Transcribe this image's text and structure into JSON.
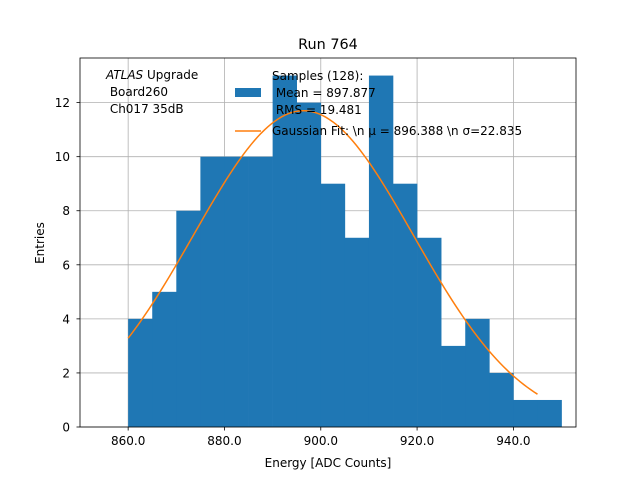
{
  "chart_data": {
    "type": "bar",
    "title": "Run 764",
    "xlabel": "Energy [ADC Counts]",
    "ylabel": "Entries",
    "xlim": [
      850,
      953
    ],
    "ylim": [
      0,
      13.65
    ],
    "grid": true,
    "xticks": [
      860,
      880,
      900,
      920,
      940
    ],
    "xtick_labels": [
      "860.0",
      "880.0",
      "900.0",
      "920.0",
      "940.0"
    ],
    "yticks": [
      0,
      2,
      4,
      6,
      8,
      10,
      12
    ],
    "bins": [
      {
        "x0": 860,
        "x1": 865,
        "count": 4
      },
      {
        "x0": 865,
        "x1": 870,
        "count": 5
      },
      {
        "x0": 870,
        "x1": 875,
        "count": 8
      },
      {
        "x0": 875,
        "x1": 880,
        "count": 10
      },
      {
        "x0": 880,
        "x1": 885,
        "count": 10
      },
      {
        "x0": 885,
        "x1": 890,
        "count": 10
      },
      {
        "x0": 890,
        "x1": 895,
        "count": 13
      },
      {
        "x0": 895,
        "x1": 900,
        "count": 12
      },
      {
        "x0": 900,
        "x1": 905,
        "count": 9
      },
      {
        "x0": 905,
        "x1": 910,
        "count": 7
      },
      {
        "x0": 910,
        "x1": 915,
        "count": 13
      },
      {
        "x0": 915,
        "x1": 920,
        "count": 9
      },
      {
        "x0": 920,
        "x1": 925,
        "count": 7
      },
      {
        "x0": 925,
        "x1": 930,
        "count": 3
      },
      {
        "x0": 930,
        "x1": 935,
        "count": 4
      },
      {
        "x0": 935,
        "x1": 940,
        "count": 2
      },
      {
        "x0": 940,
        "x1": 945,
        "count": 1
      },
      {
        "x0": 945,
        "x1": 950,
        "count": 1
      }
    ],
    "fit": {
      "type": "gaussian",
      "mu": 896.388,
      "sigma": 22.835,
      "amplitude": 11.7,
      "x_range": [
        860,
        945
      ]
    },
    "annotation": {
      "italic": "ATLAS",
      "rest": " Upgrade",
      "line2": " Board260",
      "line3": " Ch017 35dB"
    },
    "legend": {
      "placement": "top-right",
      "entries": [
        {
          "label_lines": [
            "Samples (128):",
            " Mean = 897.877",
            " RMS = 19.481"
          ],
          "color": "#1f77b4",
          "kind": "patch"
        },
        {
          "label": "Gaussian Fit: \\n μ = 896.388 \\n σ=22.835",
          "color": "#ff7f0e",
          "kind": "line"
        }
      ]
    }
  }
}
